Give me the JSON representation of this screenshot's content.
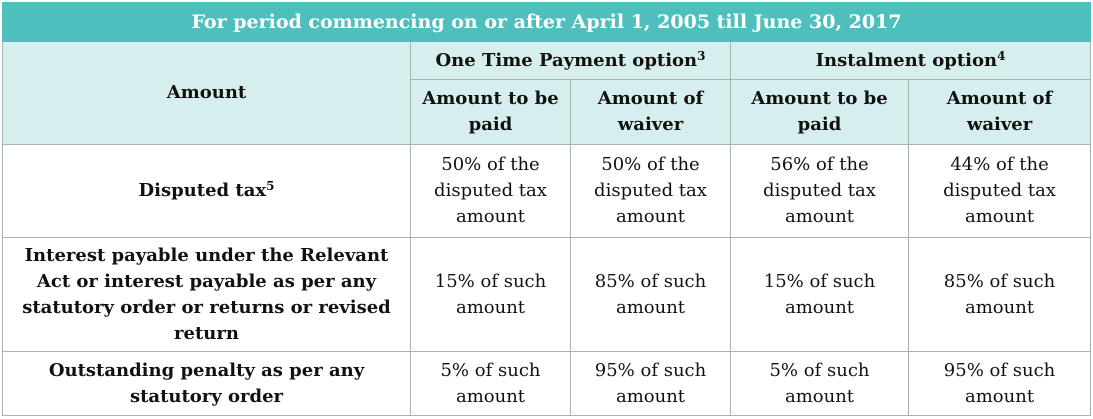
{
  "title": "For period commencing on or after April 1, 2005 till June 30, 2017",
  "headers": {
    "amount": "Amount",
    "one_time": {
      "label": "One Time Payment option",
      "sup": "3"
    },
    "instalment": {
      "label": "Instalment option",
      "sup": "4"
    },
    "sub": [
      "Amount to be paid",
      "Amount of waiver",
      "Amount to be paid",
      "Amount of waiver"
    ]
  },
  "colors": {
    "title_bg": "#4fbfbd",
    "header_bg": "#d7eeee"
  },
  "rows": [
    {
      "label": "Disputed tax",
      "sup": "5",
      "cells": [
        "50% of the disputed tax amount",
        "50% of the disputed tax amount",
        "56% of the disputed tax amount",
        "44% of the disputed tax amount"
      ]
    },
    {
      "label": "Interest payable under the Relevant Act or interest payable as per any statutory order or returns or revised return",
      "sup": "",
      "cells": [
        "15% of such amount",
        "85% of such amount",
        "15% of such amount",
        "85% of such amount"
      ]
    },
    {
      "label": "Outstanding penalty as per any statutory order",
      "sup": "",
      "cells": [
        "5% of such amount",
        "95% of such amount",
        "5% of such amount",
        "95% of such amount"
      ]
    }
  ]
}
